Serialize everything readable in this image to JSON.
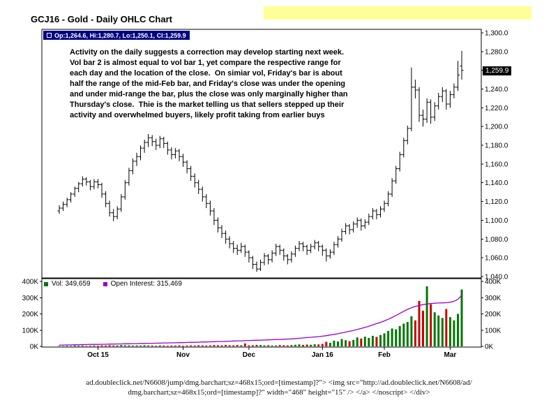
{
  "window": {
    "title": "GCJ16 - Gold - Daily OHLC Chart"
  },
  "price_legend": {
    "text": "Op:1,264.6, Hi:1,280.7, Lo:1,250.1, Cl:1,259.9"
  },
  "current_price_tag": "1,259.9",
  "volume_legend": {
    "vol_label": "Vol: 349,659",
    "oi_label": "Open Interest: 315,469"
  },
  "annotation": {
    "lines": [
      "Activity on the daily suggests a correction may develop starting next week.",
      "Vol bar 2 is almost equal to vol bar 1, yet compare the respective range for",
      "each day and the location of the close.  On simiar vol, Friday's bar is about",
      "half the range of the mid-Feb bar, and Friday's close was under the opening",
      "and under mid-range the bar, plus the close was only marginally higher than",
      "Thursday's close.  Thie is the market telling us that sellers stepped up their",
      "activity and overwhelmed buyers, likely profit taking from earlier buys"
    ]
  },
  "ad_text": {
    "line1": "ad.doubleclick.net/N6608/jump/dmg.barchart;sz=468x15;ord=[timestamp]?\"> <img src=\"http://ad.doubleclick.net/N6608/ad/",
    "line2": "dmg.barchart;sz=468x15;ord=[timestamp]?\" width=\"468\" height=\"15\" /> </a> </noscript> </div>"
  },
  "colors": {
    "up_volume": "#007700",
    "down_volume": "#cc0000",
    "open_interest": "#9900cc",
    "legend_bg": "#000080",
    "highlight_yellow": "#ffff99",
    "price_tag_bg": "#000000"
  },
  "chart_data": {
    "type": "ohlc",
    "title": "GCJ16 - Gold - Daily OHLC Chart",
    "legend_position": "top-left",
    "grid": false,
    "price_axis": {
      "side": "right",
      "range": [
        1038.5,
        1303.7
      ],
      "values": [
        1300,
        1280,
        1260,
        1240,
        1220,
        1200,
        1180,
        1160,
        1140,
        1120,
        1100,
        1080,
        1060,
        1040
      ],
      "ticks": [
        "1,300.0",
        "1,280.0",
        "1,260.0",
        "1,240.0",
        "1,220.0",
        "1,200.0",
        "1,180.0",
        "1,160.0",
        "1,140.0",
        "1,120.0",
        "1,100.0",
        "1,080.0",
        "1,060.0",
        "1,040.0"
      ]
    },
    "volume_axis": {
      "side": "both",
      "range_k": [
        0,
        400
      ],
      "values": [
        400,
        300,
        200,
        100,
        0
      ],
      "ticks": [
        "400K",
        "300K",
        "200K",
        "100K",
        "0K"
      ]
    },
    "x_axis": {
      "labels": [
        "Oct 15",
        "Nov",
        "Dec",
        "Jan 16",
        "Feb",
        "Mar"
      ],
      "label_indices": [
        10,
        32,
        49,
        68,
        84,
        101
      ]
    },
    "latest": {
      "open": 1264.6,
      "high": 1280.7,
      "low": 1250.1,
      "close": 1259.9,
      "volume": 349659,
      "open_interest": 315469
    },
    "bars": [
      [
        1110,
        1116,
        1107,
        1113
      ],
      [
        1113,
        1120,
        1110,
        1117
      ],
      [
        1117,
        1124,
        1114,
        1122
      ],
      [
        1122,
        1130,
        1119,
        1128
      ],
      [
        1128,
        1136,
        1125,
        1134
      ],
      [
        1134,
        1141,
        1130,
        1139
      ],
      [
        1139,
        1147,
        1136,
        1144
      ],
      [
        1144,
        1146,
        1137,
        1141
      ],
      [
        1141,
        1143,
        1132,
        1136
      ],
      [
        1136,
        1144,
        1133,
        1141
      ],
      [
        1141,
        1144,
        1134,
        1138
      ],
      [
        1138,
        1140,
        1124,
        1128
      ],
      [
        1128,
        1131,
        1114,
        1118
      ],
      [
        1118,
        1121,
        1104,
        1108
      ],
      [
        1108,
        1112,
        1099,
        1104
      ],
      [
        1104,
        1115,
        1101,
        1112
      ],
      [
        1112,
        1128,
        1109,
        1125
      ],
      [
        1125,
        1143,
        1122,
        1140
      ],
      [
        1140,
        1156,
        1137,
        1153
      ],
      [
        1153,
        1166,
        1149,
        1163
      ],
      [
        1163,
        1172,
        1158,
        1168
      ],
      [
        1168,
        1180,
        1164,
        1177
      ],
      [
        1177,
        1186,
        1172,
        1183
      ],
      [
        1183,
        1192,
        1178,
        1188
      ],
      [
        1188,
        1191,
        1179,
        1184
      ],
      [
        1184,
        1187,
        1175,
        1180
      ],
      [
        1180,
        1190,
        1177,
        1187
      ],
      [
        1187,
        1189,
        1177,
        1182
      ],
      [
        1182,
        1184,
        1170,
        1175
      ],
      [
        1175,
        1178,
        1165,
        1170
      ],
      [
        1170,
        1177,
        1166,
        1174
      ],
      [
        1174,
        1176,
        1163,
        1168
      ],
      [
        1168,
        1171,
        1157,
        1162
      ],
      [
        1162,
        1164,
        1150,
        1155
      ],
      [
        1155,
        1158,
        1142,
        1147
      ],
      [
        1147,
        1150,
        1135,
        1140
      ],
      [
        1140,
        1143,
        1128,
        1133
      ],
      [
        1133,
        1136,
        1120,
        1125
      ],
      [
        1125,
        1128,
        1113,
        1118
      ],
      [
        1118,
        1121,
        1105,
        1110
      ],
      [
        1110,
        1113,
        1095,
        1100
      ],
      [
        1100,
        1103,
        1087,
        1092
      ],
      [
        1092,
        1095,
        1081,
        1086
      ],
      [
        1086,
        1089,
        1075,
        1080
      ],
      [
        1080,
        1083,
        1070,
        1075
      ],
      [
        1075,
        1078,
        1065,
        1070
      ],
      [
        1070,
        1074,
        1063,
        1068
      ],
      [
        1068,
        1076,
        1065,
        1072
      ],
      [
        1072,
        1074,
        1061,
        1066
      ],
      [
        1066,
        1068,
        1055,
        1060
      ],
      [
        1060,
        1062,
        1048,
        1053
      ],
      [
        1053,
        1056,
        1045,
        1048
      ],
      [
        1048,
        1058,
        1046,
        1055
      ],
      [
        1055,
        1065,
        1052,
        1062
      ],
      [
        1062,
        1064,
        1053,
        1058
      ],
      [
        1058,
        1068,
        1055,
        1065
      ],
      [
        1065,
        1075,
        1062,
        1072
      ],
      [
        1072,
        1074,
        1063,
        1068
      ],
      [
        1068,
        1070,
        1057,
        1062
      ],
      [
        1062,
        1064,
        1053,
        1058
      ],
      [
        1058,
        1067,
        1055,
        1064
      ],
      [
        1064,
        1073,
        1061,
        1070
      ],
      [
        1070,
        1078,
        1067,
        1075
      ],
      [
        1075,
        1077,
        1067,
        1072
      ],
      [
        1072,
        1074,
        1063,
        1068
      ],
      [
        1068,
        1075,
        1065,
        1072
      ],
      [
        1072,
        1079,
        1069,
        1076
      ],
      [
        1076,
        1078,
        1067,
        1072
      ],
      [
        1072,
        1074,
        1062,
        1068
      ],
      [
        1068,
        1070,
        1056,
        1062
      ],
      [
        1062,
        1069,
        1059,
        1066
      ],
      [
        1066,
        1077,
        1063,
        1074
      ],
      [
        1074,
        1083,
        1071,
        1080
      ],
      [
        1080,
        1091,
        1077,
        1088
      ],
      [
        1088,
        1097,
        1085,
        1094
      ],
      [
        1094,
        1096,
        1085,
        1090
      ],
      [
        1090,
        1099,
        1087,
        1096
      ],
      [
        1096,
        1103,
        1092,
        1100
      ],
      [
        1100,
        1102,
        1089,
        1094
      ],
      [
        1094,
        1101,
        1091,
        1098
      ],
      [
        1098,
        1107,
        1095,
        1104
      ],
      [
        1104,
        1113,
        1101,
        1110
      ],
      [
        1110,
        1112,
        1101,
        1106
      ],
      [
        1106,
        1115,
        1103,
        1112
      ],
      [
        1112,
        1121,
        1109,
        1118
      ],
      [
        1118,
        1131,
        1115,
        1128
      ],
      [
        1128,
        1145,
        1125,
        1142
      ],
      [
        1142,
        1158,
        1139,
        1155
      ],
      [
        1155,
        1173,
        1152,
        1170
      ],
      [
        1170,
        1188,
        1167,
        1185
      ],
      [
        1185,
        1201,
        1181,
        1198
      ],
      [
        1198,
        1263,
        1195,
        1242
      ],
      [
        1242,
        1250,
        1230,
        1239
      ],
      [
        1239,
        1242,
        1205,
        1212
      ],
      [
        1212,
        1218,
        1200,
        1208
      ],
      [
        1208,
        1230,
        1204,
        1226
      ],
      [
        1226,
        1229,
        1203,
        1210
      ],
      [
        1210,
        1226,
        1206,
        1222
      ],
      [
        1222,
        1236,
        1218,
        1232
      ],
      [
        1232,
        1242,
        1226,
        1238
      ],
      [
        1238,
        1240,
        1218,
        1224
      ],
      [
        1224,
        1238,
        1220,
        1234
      ],
      [
        1234,
        1246,
        1230,
        1242
      ],
      [
        1242,
        1270,
        1238,
        1255
      ],
      [
        1264.6,
        1280.7,
        1250.1,
        1259.9
      ]
    ],
    "volume_k": [
      3,
      2,
      4,
      3,
      5,
      4,
      6,
      3,
      4,
      5,
      4,
      6,
      5,
      7,
      5,
      6,
      8,
      7,
      6,
      5,
      6,
      5,
      7,
      6,
      5,
      4,
      6,
      5,
      4,
      5,
      5,
      6,
      4,
      5,
      6,
      5,
      7,
      6,
      5,
      6,
      8,
      7,
      6,
      9,
      7,
      6,
      8,
      7,
      18,
      6,
      7,
      9,
      8,
      6,
      7,
      5,
      6,
      8,
      7,
      6,
      8,
      10,
      12,
      9,
      11,
      10,
      13,
      12,
      15,
      28,
      22,
      35,
      30,
      45,
      38,
      32,
      40,
      55,
      48,
      60,
      52,
      65,
      58,
      70,
      80,
      95,
      110,
      105,
      125,
      140,
      150,
      185,
      160,
      280,
      220,
      370,
      260,
      210,
      190,
      175,
      230,
      180,
      160,
      200,
      350
    ],
    "open_interest_k": [
      8,
      8,
      9,
      9,
      10,
      10,
      11,
      11,
      12,
      12,
      12,
      13,
      13,
      14,
      14,
      15,
      15,
      16,
      16,
      17,
      17,
      18,
      18,
      19,
      19,
      20,
      20,
      21,
      21,
      22,
      22,
      23,
      23,
      24,
      25,
      25,
      26,
      27,
      27,
      28,
      29,
      30,
      30,
      31,
      32,
      33,
      34,
      34,
      35,
      36,
      37,
      38,
      38,
      39,
      40,
      41,
      42,
      43,
      44,
      45,
      46,
      48,
      50,
      52,
      54,
      56,
      58,
      60,
      63,
      66,
      70,
      74,
      78,
      83,
      88,
      93,
      98,
      104,
      110,
      117,
      124,
      132,
      140,
      148,
      157,
      167,
      178,
      190,
      203,
      216,
      228,
      238,
      246,
      252,
      257,
      261,
      264,
      266,
      267,
      268,
      269,
      272,
      278,
      290,
      315
    ]
  }
}
